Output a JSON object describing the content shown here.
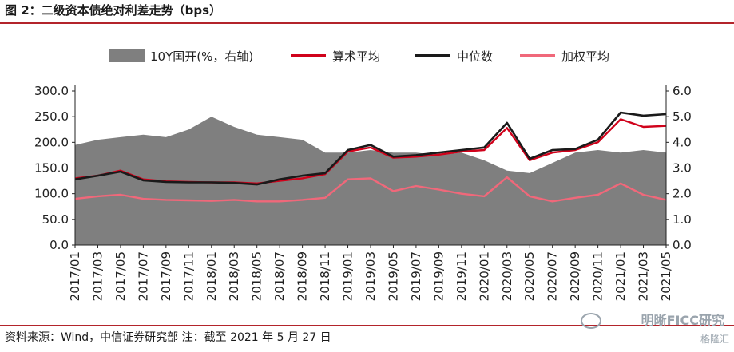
{
  "header": {
    "title": "图 2：二级资本债绝对利差走势（bps）"
  },
  "footer": {
    "source": "资料来源：Wind，中信证券研究部  注：截至 2021 年 5 月 27 日",
    "watermark": "明晰FICC研究",
    "watermark_sub": "格隆汇"
  },
  "colors": {
    "area": "#7f7f7f",
    "mean": "#d0021b",
    "median": "#1a1a1a",
    "weighted": "#f0687a"
  },
  "chart_data": {
    "type": "line",
    "x": [
      "2017/01",
      "2017/03",
      "2017/05",
      "2017/07",
      "2017/09",
      "2017/11",
      "2018/01",
      "2018/03",
      "2018/05",
      "2018/07",
      "2018/09",
      "2018/11",
      "2019/01",
      "2019/03",
      "2019/05",
      "2019/07",
      "2019/09",
      "2019/11",
      "2020/01",
      "2020/03",
      "2020/05",
      "2020/07",
      "2020/09",
      "2020/11",
      "2021/01",
      "2021/03",
      "2021/05"
    ],
    "xticks": [
      "2017/01",
      "2017/03",
      "2017/05",
      "2017/07",
      "2017/09",
      "2017/11",
      "2018/01",
      "2018/03",
      "2018/05",
      "2018/07",
      "2018/09",
      "2018/11",
      "2019/01",
      "2019/03",
      "2019/05",
      "2019/07",
      "2019/09",
      "2019/11",
      "2020/01",
      "2020/03",
      "2020/05",
      "2020/07",
      "2020/09",
      "2020/11",
      "2021/01",
      "2021/03",
      "2021/05"
    ],
    "yticks_left": [
      "0.0",
      "50.0",
      "100.0",
      "150.0",
      "200.0",
      "250.0",
      "300.0"
    ],
    "yticks_right": [
      "0.0",
      "1.0",
      "2.0",
      "3.0",
      "4.0",
      "5.0",
      "6.0"
    ],
    "ylim_left": [
      0,
      300
    ],
    "ylim_right": [
      0,
      6
    ],
    "legend_position": "top",
    "grid": false,
    "series": [
      {
        "name": "10Y国开(%，右轴)",
        "axis": "right",
        "kind": "area",
        "values": [
          3.9,
          4.1,
          4.2,
          4.3,
          4.2,
          4.5,
          5.0,
          4.6,
          4.3,
          4.2,
          4.1,
          3.6,
          3.6,
          3.7,
          3.6,
          3.6,
          3.5,
          3.6,
          3.3,
          2.9,
          2.8,
          3.2,
          3.6,
          3.7,
          3.6,
          3.7,
          3.6
        ]
      },
      {
        "name": "算术平均",
        "axis": "left",
        "kind": "line",
        "values": [
          130,
          135,
          145,
          128,
          124,
          123,
          122,
          122,
          120,
          125,
          130,
          138,
          182,
          190,
          170,
          172,
          176,
          182,
          185,
          228,
          165,
          180,
          185,
          200,
          245,
          230,
          232
        ]
      },
      {
        "name": "中位数",
        "axis": "left",
        "kind": "line",
        "values": [
          128,
          135,
          143,
          126,
          123,
          122,
          122,
          121,
          118,
          128,
          135,
          140,
          185,
          195,
          172,
          175,
          180,
          185,
          190,
          238,
          168,
          185,
          187,
          205,
          258,
          252,
          255
        ]
      },
      {
        "name": "加权平均",
        "axis": "left",
        "kind": "line",
        "values": [
          90,
          95,
          98,
          90,
          88,
          87,
          86,
          88,
          85,
          85,
          88,
          92,
          128,
          130,
          105,
          115,
          108,
          100,
          95,
          132,
          95,
          85,
          92,
          98,
          120,
          98,
          88
        ]
      }
    ]
  }
}
